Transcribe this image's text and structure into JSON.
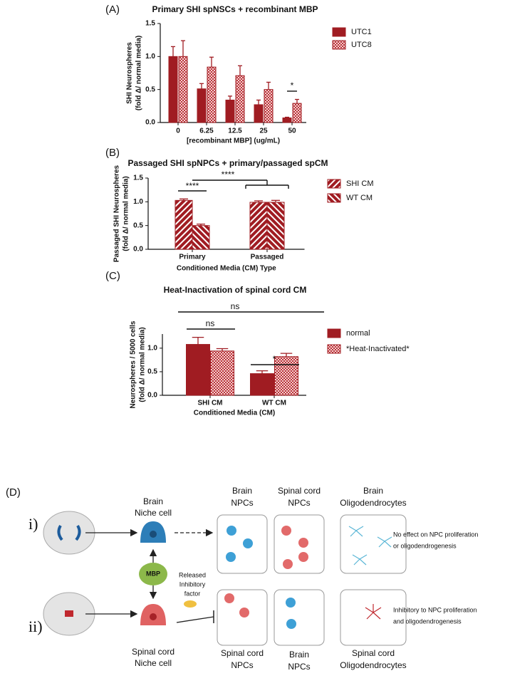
{
  "chart_data": [
    {
      "type": "bar",
      "panel_label": "(A)",
      "title": "Primary SHI spNSCs + recombinant MBP",
      "xlabel": "[recombinant MBP] (ug/mL)",
      "ylabel": [
        "SHI Neurospheres",
        "(fold Δ/ normal media)"
      ],
      "categories": [
        "0",
        "6.25",
        "12.5",
        "25",
        "50"
      ],
      "series": [
        {
          "name": "UTC1",
          "color": "#a01c22",
          "pattern": "solid",
          "values": [
            1.0,
            0.51,
            0.34,
            0.27,
            0.07
          ],
          "errors": [
            0.15,
            0.08,
            0.06,
            0.07,
            0.01
          ]
        },
        {
          "name": "UTC8",
          "color": "#a01c22",
          "pattern": "checker",
          "values": [
            1.0,
            0.84,
            0.71,
            0.5,
            0.29
          ],
          "errors": [
            0.24,
            0.15,
            0.15,
            0.11,
            0.06
          ]
        }
      ],
      "ylim": [
        0,
        1.5
      ],
      "yticks": [
        {
          "value": 0,
          "label": "0.0"
        },
        {
          "value": 0.5,
          "label": "0.5"
        },
        {
          "value": 1,
          "label": "1.0"
        },
        {
          "value": 1.5,
          "label": "1.5"
        }
      ],
      "annotations": [
        {
          "text": "*"
        }
      ]
    },
    {
      "type": "bar",
      "panel_label": "(B)",
      "title": "Passaged SHI spNPCs + primary/passaged spCM",
      "xlabel": "Conditioned Media (CM) Type",
      "ylabel": [
        "Passaged SHI Neurospheres",
        "(fold Δ/ normal media)"
      ],
      "categories": [
        "Primary",
        "Passaged"
      ],
      "series": [
        {
          "name": "SHI CM",
          "color": "#a01c22",
          "pattern": "hatch-right",
          "values": [
            1.03,
            0.99
          ],
          "errors": [
            0.03,
            0.03
          ]
        },
        {
          "name": "WT CM",
          "color": "#a01c22",
          "pattern": "hatch-left",
          "values": [
            0.5,
            0.99
          ],
          "errors": [
            0.03,
            0.04
          ]
        }
      ],
      "ylim": [
        0,
        1.5
      ],
      "yticks": [
        {
          "value": 0,
          "label": "0.0"
        },
        {
          "value": 0.5,
          "label": "0.5"
        },
        {
          "value": 1,
          "label": "1.0"
        },
        {
          "value": 1.5,
          "label": "1.5"
        }
      ],
      "annotations": [
        {
          "text": "****"
        },
        {
          "text": "****"
        }
      ]
    },
    {
      "type": "bar",
      "panel_label": "(C)",
      "title": "Heat-Inactivation of spinal cord CM",
      "xlabel": "Conditioned Media (CM)",
      "ylabel": [
        "Neurospheres / 5000 cells",
        "(fold Δ/ normal media)"
      ],
      "categories": [
        "SHI CM",
        "WT CM"
      ],
      "series": [
        {
          "name": "normal",
          "color": "#a01c22",
          "pattern": "solid",
          "values": [
            1.08,
            0.46
          ],
          "errors": [
            0.15,
            0.06
          ]
        },
        {
          "name": "*Heat-Inactivated*",
          "color": "#a01c22",
          "pattern": "checker",
          "values": [
            0.94,
            0.82
          ],
          "errors": [
            0.05,
            0.07
          ]
        }
      ],
      "ylim": [
        0,
        1.3
      ],
      "yticks": [
        {
          "value": 0,
          "label": "0.0"
        },
        {
          "value": 0.5,
          "label": "0.5"
        },
        {
          "value": 1,
          "label": "1.0"
        }
      ],
      "annotations": [
        {
          "text": "ns"
        },
        {
          "text": "ns"
        },
        {
          "text": "*"
        }
      ]
    }
  ],
  "diagram": {
    "panel_label": "(D)",
    "rows": [
      {
        "label": "i)",
        "niche": [
          "Brain",
          "Niche cell"
        ],
        "boxes": [
          [
            "Brain",
            "NPCs"
          ],
          [
            "Spinal cord",
            "NPCs"
          ],
          [
            "Brain",
            "Oligodendrocytes"
          ]
        ],
        "note": [
          "No effect on NPC proliferation",
          "or oligodendrogenesis"
        ]
      },
      {
        "label": "ii)",
        "niche": [
          "Spinal cord",
          "Niche cell"
        ],
        "boxes": [
          [
            "Spinal cord",
            "NPCs"
          ],
          [
            "Brain",
            "NPCs"
          ],
          [
            "Spinal cord",
            "Oligodendrocytes"
          ]
        ],
        "note": [
          "Inhibitory to NPC proliferation",
          "and oligodendrogenesis"
        ]
      }
    ],
    "mbp": "MBP",
    "factor": [
      "Released",
      "Inhibitory",
      "factor"
    ]
  }
}
